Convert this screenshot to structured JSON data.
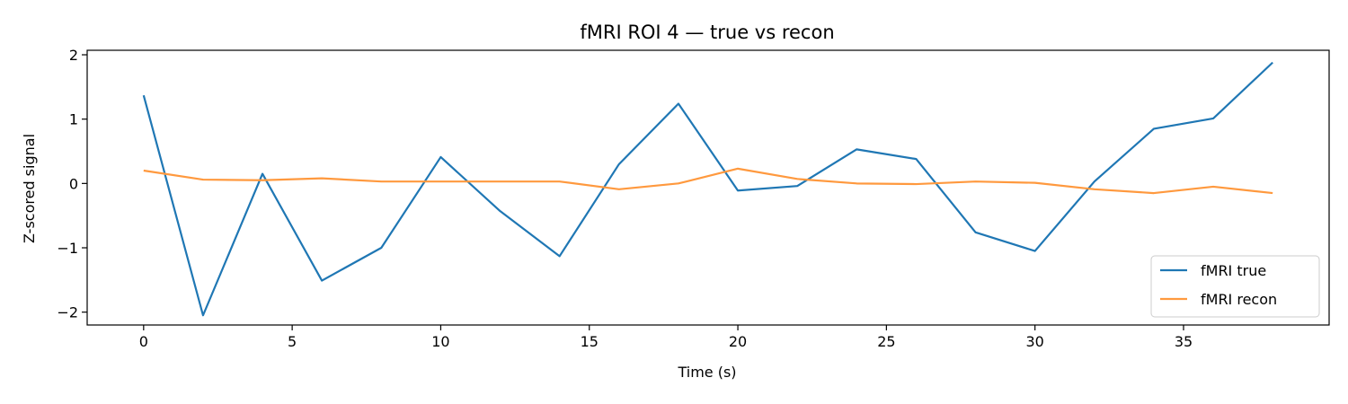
{
  "chart_data": {
    "type": "line",
    "title": "fMRI ROI 4 — true vs recon",
    "xlabel": "Time (s)",
    "ylabel": "Z-scored signal",
    "xlim": [
      -1.9,
      39.9
    ],
    "ylim": [
      -2.2,
      2.07
    ],
    "xticks": [
      0,
      5,
      10,
      15,
      20,
      25,
      30,
      35
    ],
    "yticks": [
      -2,
      -1,
      0,
      1,
      2
    ],
    "grid": false,
    "legend_position": "lower-right",
    "x": [
      0,
      2,
      4,
      6,
      8,
      10,
      12,
      14,
      16,
      18,
      20,
      22,
      24,
      26,
      28,
      30,
      32,
      34,
      36,
      38
    ],
    "series": [
      {
        "name": "fMRI true",
        "color": "#1f77b4",
        "values": [
          1.37,
          -2.05,
          0.15,
          -1.51,
          -1.0,
          0.41,
          -0.43,
          -1.13,
          0.3,
          1.24,
          -0.11,
          -0.04,
          0.53,
          0.38,
          -0.76,
          -1.05,
          0.03,
          0.85,
          1.01,
          1.88
        ]
      },
      {
        "name": "fMRI recon",
        "color": "#ff993e",
        "values": [
          0.2,
          0.06,
          0.05,
          0.08,
          0.03,
          0.03,
          0.03,
          0.03,
          -0.09,
          0.0,
          0.23,
          0.07,
          0.0,
          -0.01,
          0.03,
          0.01,
          -0.09,
          -0.15,
          -0.05,
          -0.15
        ]
      }
    ]
  }
}
